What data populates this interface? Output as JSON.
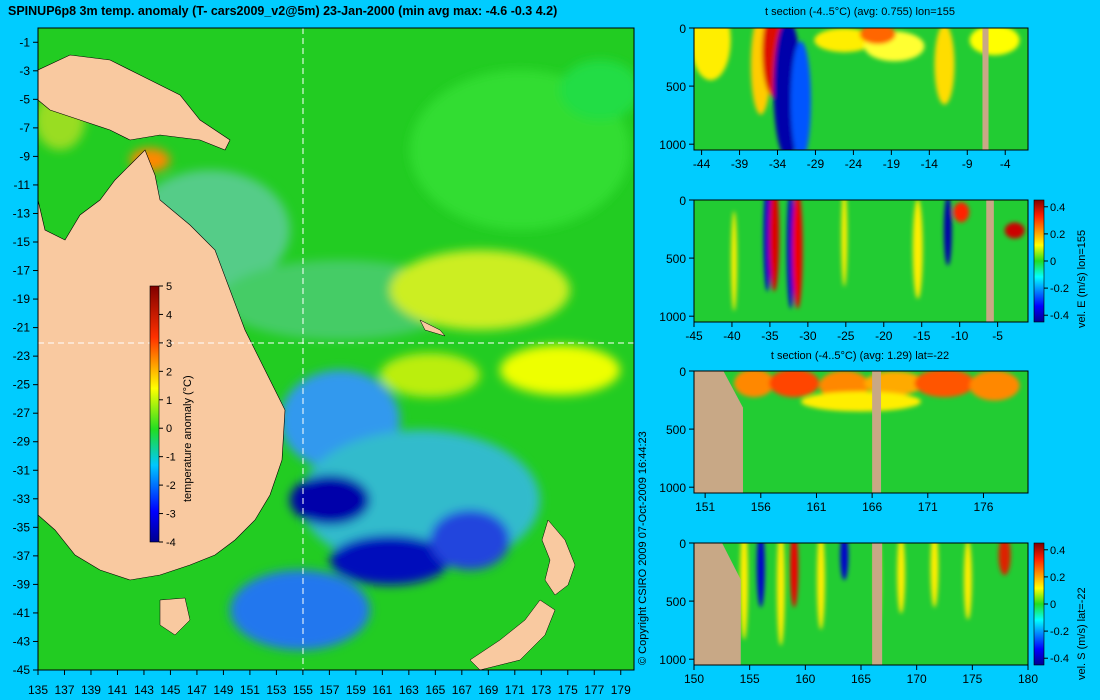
{
  "title": "SPINUP6p8 3m temp. anomaly (T- cars2009_v2@5m) 23-Jan-2000 (min avg max: -4.6 -0.3 4.2)",
  "copyright": "© Copyright CSIRO 2009   07-Oct-2009 16:44:23",
  "colors": {
    "background": "#00ccff",
    "land": "#f9c9a0",
    "section_land": "#c8a886"
  },
  "chart_data": [
    {
      "type": "heatmap",
      "title": "SPINUP6p8 3m temp. anomaly (T- cars2009_v2@5m) 23-Jan-2000 (min avg max: -4.6 -0.3 4.2)",
      "x_ticks": [
        "135",
        "137",
        "139",
        "141",
        "143",
        "145",
        "147",
        "149",
        "151",
        "153",
        "155",
        "157",
        "159",
        "161",
        "163",
        "165",
        "167",
        "169",
        "171",
        "173",
        "175",
        "177",
        "179"
      ],
      "y_ticks": [
        "-1",
        "-3",
        "-5",
        "-7",
        "-9",
        "-11",
        "-13",
        "-15",
        "-17",
        "-19",
        "-21",
        "-23",
        "-25",
        "-27",
        "-29",
        "-31",
        "-33",
        "-35",
        "-37",
        "-39",
        "-41",
        "-43",
        "-45"
      ],
      "xlim": [
        135,
        180
      ],
      "ylim": [
        -45,
        0
      ],
      "crosshair": {
        "lon": 155,
        "lat": -22
      },
      "colorbar": {
        "label": "temperature anomaly (°C)",
        "range": [
          -4,
          5
        ],
        "ticks": [
          "5",
          "4",
          "3",
          "2",
          "1",
          "0",
          "-1",
          "-2",
          "-3",
          "-4"
        ]
      }
    },
    {
      "type": "heatmap",
      "title": "t section (-4..5°C) (avg: 0.755) lon=155",
      "x_ticks": [
        "-44",
        "-39",
        "-34",
        "-29",
        "-24",
        "-19",
        "-14",
        "-9",
        "-4"
      ],
      "x_values": [
        -44,
        -39,
        -34,
        -29,
        -24,
        -19,
        -14,
        -9,
        -4
      ],
      "xlim": [
        -45,
        -1
      ],
      "ylim": [
        1050,
        0
      ],
      "y_ticks": [
        "0",
        "500",
        "1000"
      ]
    },
    {
      "type": "heatmap",
      "title": "",
      "x_ticks": [
        "-45",
        "-40",
        "-35",
        "-30",
        "-25",
        "-20",
        "-15",
        "-10",
        "-5"
      ],
      "x_values": [
        -45,
        -40,
        -35,
        -30,
        -25,
        -20,
        -15,
        -10,
        -5
      ],
      "xlim": [
        -45,
        -1
      ],
      "ylim": [
        1050,
        0
      ],
      "y_ticks": [
        "0",
        "500",
        "1000"
      ],
      "colorbar": {
        "label": "vel. E (m/s) lon=155",
        "range": [
          -0.45,
          0.45
        ],
        "ticks": [
          "0.4",
          "0.2",
          "0",
          "-0.2",
          "-0.4"
        ]
      }
    },
    {
      "type": "heatmap",
      "title": "t section (-4..5°C) (avg: 1.29) lat=-22",
      "x_ticks": [
        "151",
        "156",
        "161",
        "166",
        "171",
        "176"
      ],
      "x_values": [
        151,
        156,
        161,
        166,
        171,
        176
      ],
      "xlim": [
        150,
        180
      ],
      "ylim": [
        1050,
        0
      ],
      "y_ticks": [
        "0",
        "500",
        "1000"
      ]
    },
    {
      "type": "heatmap",
      "title": "",
      "x_ticks": [
        "150",
        "155",
        "160",
        "165",
        "170",
        "175",
        "180"
      ],
      "x_values": [
        150,
        155,
        160,
        165,
        170,
        175,
        180
      ],
      "xlim": [
        150,
        180
      ],
      "ylim": [
        1050,
        0
      ],
      "y_ticks": [
        "0",
        "500",
        "1000"
      ],
      "colorbar": {
        "label": "vel. S (m/s) lat=-22",
        "range": [
          -0.45,
          0.45
        ],
        "ticks": [
          "0.4",
          "0.2",
          "0",
          "-0.2",
          "-0.4"
        ]
      }
    }
  ]
}
